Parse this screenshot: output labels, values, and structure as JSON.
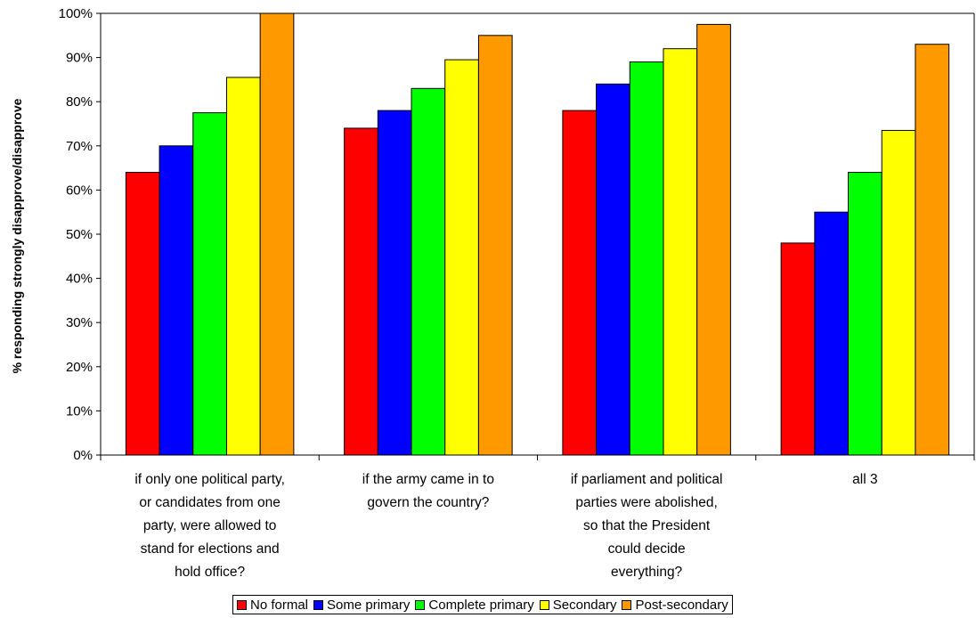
{
  "chart_data": {
    "type": "bar",
    "title": "",
    "xlabel": "",
    "ylabel": "% responding strongly disapprove/disapprove",
    "ylim": [
      0,
      100
    ],
    "ytick_step": 10,
    "ytick_format": "%",
    "grid": false,
    "legend_position": "bottom",
    "categories": [
      [
        "if only one political party,",
        "or candidates from one",
        "party, were allowed to",
        "stand for elections and",
        "hold office?"
      ],
      [
        "if the army came in to",
        "govern the country?"
      ],
      [
        "if parliament and political",
        "parties were abolished,",
        "so that the President",
        "could decide",
        "everything?"
      ],
      [
        "all 3"
      ]
    ],
    "series": [
      {
        "name": "No formal",
        "color": "#ff0000",
        "values": [
          64,
          74,
          78,
          48
        ]
      },
      {
        "name": "Some primary",
        "color": "#0000ff",
        "values": [
          70,
          78,
          84,
          55
        ]
      },
      {
        "name": "Complete primary",
        "color": "#00ff00",
        "values": [
          77.5,
          83,
          89,
          64
        ]
      },
      {
        "name": "Secondary",
        "color": "#ffff00",
        "values": [
          85.5,
          89.5,
          92,
          73.5
        ]
      },
      {
        "name": "Post-secondary",
        "color": "#ff9900",
        "values": [
          100,
          95,
          97.5,
          93
        ]
      }
    ]
  }
}
